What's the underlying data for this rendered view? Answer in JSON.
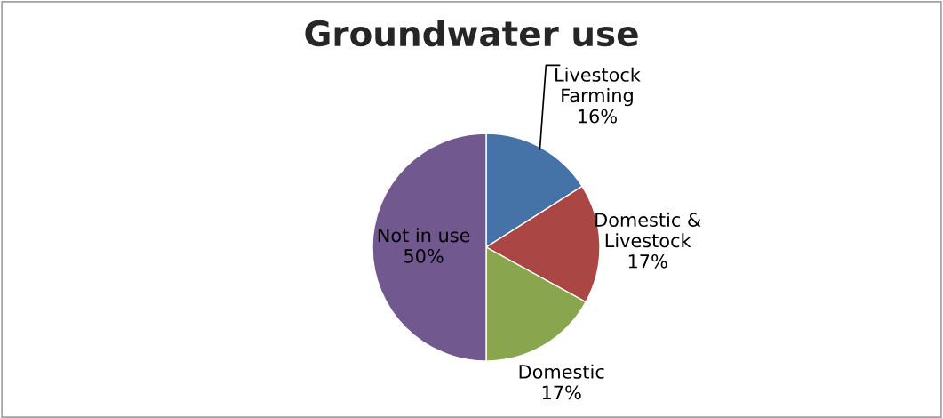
{
  "chart_data": {
    "type": "pie",
    "title": "Groundwater use",
    "categories": [
      "Livestock Farming",
      "Domestic & Livestock",
      "Domestic",
      "Not in use"
    ],
    "values": [
      16,
      17,
      17,
      50
    ],
    "value_labels": [
      "16%",
      "17%",
      "17%",
      "50%"
    ],
    "colors": [
      "#4572a7",
      "#aa4643",
      "#89a54e",
      "#71588f"
    ],
    "legend": false
  }
}
